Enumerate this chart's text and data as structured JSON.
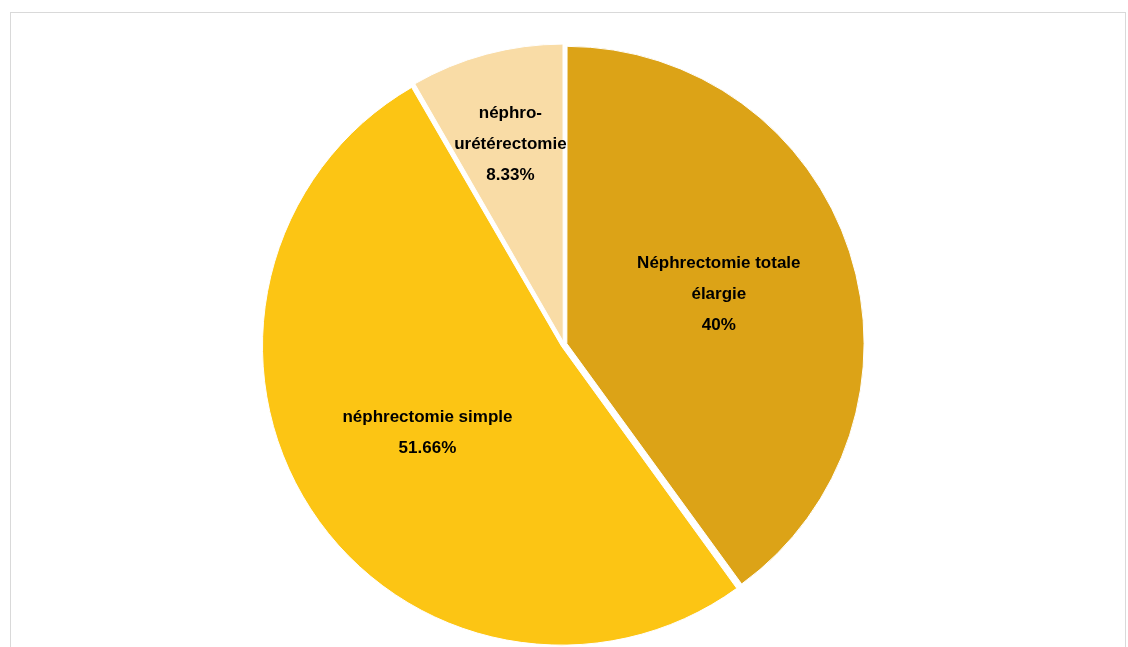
{
  "chart_data": {
    "type": "pie",
    "categories": [
      "Néphrectomie totale élargie",
      "néphrectomie simple",
      "néphro-urétérectomie"
    ],
    "values": [
      40,
      51.66,
      8.33
    ],
    "colors": [
      "#dca317",
      "#fcc514",
      "#f9dca6"
    ],
    "value_labels": [
      "40%",
      "51.66%",
      "8.33%"
    ],
    "legend": false
  }
}
